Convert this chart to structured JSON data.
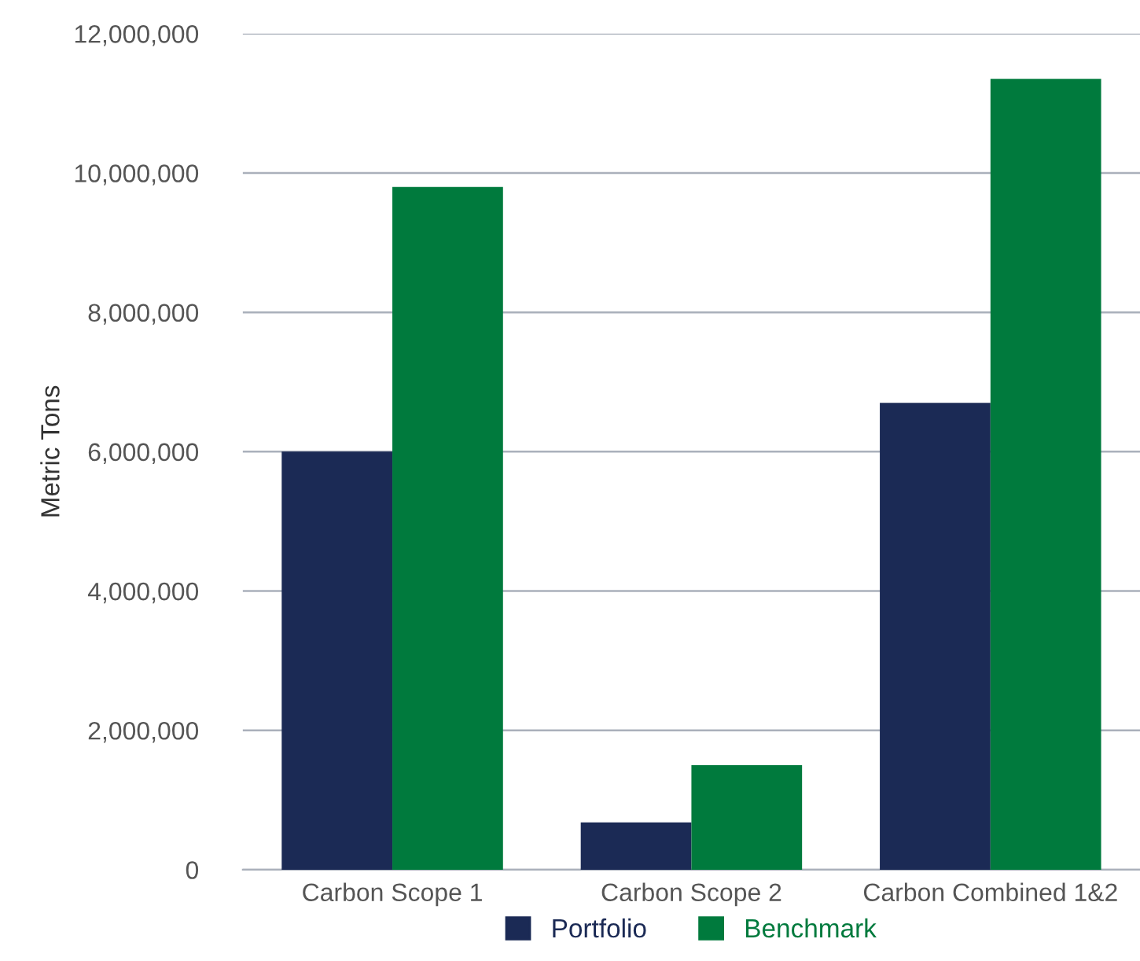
{
  "chart_data": {
    "type": "bar",
    "ylabel": "Metric Tons",
    "categories": [
      "Carbon Scope 1",
      "Carbon Scope 2",
      "Carbon Combined 1&2"
    ],
    "series": [
      {
        "name": "Portfolio",
        "color": "#1b2a55",
        "values": [
          6000000,
          680000,
          6700000
        ]
      },
      {
        "name": "Benchmark",
        "color": "#007a3d",
        "values": [
          9800000,
          1500000,
          11350000
        ]
      }
    ],
    "ylim": [
      0,
      12000000
    ],
    "yticks": [
      {
        "value": 0,
        "label": "0"
      },
      {
        "value": 2000000,
        "label": "2,000,000"
      },
      {
        "value": 4000000,
        "label": "4,000,000"
      },
      {
        "value": 6000000,
        "label": "6,000,000"
      },
      {
        "value": 8000000,
        "label": "8,000,000"
      },
      {
        "value": 10000000,
        "label": "10,000,000"
      },
      {
        "value": 12000000,
        "label": "12,000,000"
      }
    ],
    "grid": "y",
    "legend": "bottom"
  }
}
